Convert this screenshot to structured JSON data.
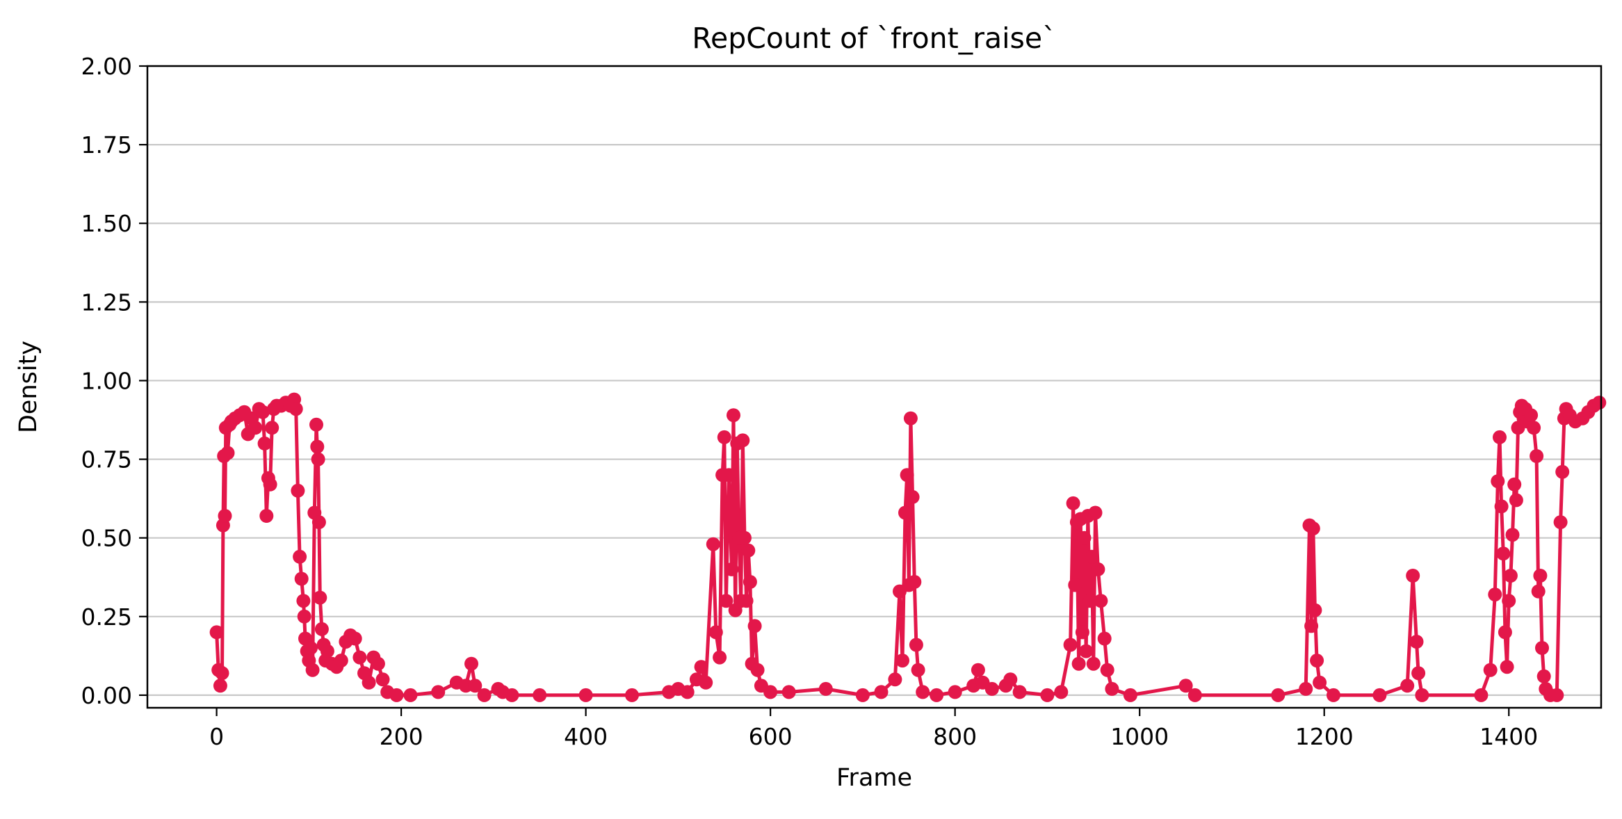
{
  "chart_data": {
    "type": "line",
    "title": "RepCount of `front_raise`",
    "xlabel": "Frame",
    "ylabel": "Density",
    "xlim": [
      -75,
      1500
    ],
    "ylim": [
      -0.04,
      2.0
    ],
    "xticks": [
      0,
      200,
      400,
      600,
      800,
      1000,
      1200,
      1400
    ],
    "xtick_labels": [
      "0",
      "200",
      "400",
      "600",
      "800",
      "1000",
      "1200",
      "1400"
    ],
    "yticks": [
      0.0,
      0.25,
      0.5,
      0.75,
      1.0,
      1.25,
      1.5,
      1.75,
      2.0
    ],
    "ytick_labels": [
      "0.00",
      "0.25",
      "0.50",
      "0.75",
      "1.00",
      "1.25",
      "1.50",
      "1.75",
      "2.00"
    ],
    "grid": "y",
    "legend": "none",
    "series": [
      {
        "color": "#e3174a",
        "marker": "circle",
        "points": [
          [
            0,
            0.2
          ],
          [
            2,
            0.08
          ],
          [
            4,
            0.03
          ],
          [
            6,
            0.07
          ],
          [
            7,
            0.54
          ],
          [
            8,
            0.76
          ],
          [
            9,
            0.57
          ],
          [
            10,
            0.85
          ],
          [
            12,
            0.77
          ],
          [
            14,
            0.86
          ],
          [
            16,
            0.87
          ],
          [
            20,
            0.88
          ],
          [
            25,
            0.89
          ],
          [
            30,
            0.9
          ],
          [
            34,
            0.83
          ],
          [
            38,
            0.88
          ],
          [
            42,
            0.85
          ],
          [
            46,
            0.91
          ],
          [
            50,
            0.9
          ],
          [
            52,
            0.8
          ],
          [
            54,
            0.57
          ],
          [
            56,
            0.69
          ],
          [
            58,
            0.67
          ],
          [
            60,
            0.85
          ],
          [
            62,
            0.91
          ],
          [
            65,
            0.92
          ],
          [
            70,
            0.92
          ],
          [
            75,
            0.93
          ],
          [
            80,
            0.92
          ],
          [
            84,
            0.94
          ],
          [
            86,
            0.91
          ],
          [
            88,
            0.65
          ],
          [
            90,
            0.44
          ],
          [
            92,
            0.37
          ],
          [
            94,
            0.3
          ],
          [
            95,
            0.25
          ],
          [
            96,
            0.18
          ],
          [
            98,
            0.14
          ],
          [
            100,
            0.11
          ],
          [
            102,
            0.15
          ],
          [
            104,
            0.08
          ],
          [
            106,
            0.58
          ],
          [
            108,
            0.86
          ],
          [
            109,
            0.79
          ],
          [
            110,
            0.75
          ],
          [
            111,
            0.55
          ],
          [
            112,
            0.31
          ],
          [
            114,
            0.21
          ],
          [
            116,
            0.16
          ],
          [
            118,
            0.11
          ],
          [
            120,
            0.14
          ],
          [
            125,
            0.1
          ],
          [
            130,
            0.09
          ],
          [
            135,
            0.11
          ],
          [
            140,
            0.17
          ],
          [
            145,
            0.19
          ],
          [
            150,
            0.18
          ],
          [
            155,
            0.12
          ],
          [
            160,
            0.07
          ],
          [
            165,
            0.04
          ],
          [
            170,
            0.12
          ],
          [
            175,
            0.1
          ],
          [
            180,
            0.05
          ],
          [
            185,
            0.01
          ],
          [
            195,
            0.0
          ],
          [
            210,
            0.0
          ],
          [
            240,
            0.01
          ],
          [
            260,
            0.04
          ],
          [
            270,
            0.03
          ],
          [
            276,
            0.1
          ],
          [
            280,
            0.03
          ],
          [
            290,
            0.0
          ],
          [
            305,
            0.02
          ],
          [
            310,
            0.01
          ],
          [
            320,
            0.0
          ],
          [
            350,
            0.0
          ],
          [
            400,
            0.0
          ],
          [
            450,
            0.0
          ],
          [
            490,
            0.01
          ],
          [
            500,
            0.02
          ],
          [
            510,
            0.01
          ],
          [
            520,
            0.05
          ],
          [
            525,
            0.09
          ],
          [
            530,
            0.04
          ],
          [
            538,
            0.48
          ],
          [
            541,
            0.2
          ],
          [
            545,
            0.12
          ],
          [
            548,
            0.7
          ],
          [
            550,
            0.82
          ],
          [
            552,
            0.3
          ],
          [
            555,
            0.7
          ],
          [
            558,
            0.4
          ],
          [
            560,
            0.89
          ],
          [
            562,
            0.27
          ],
          [
            564,
            0.8
          ],
          [
            566,
            0.5
          ],
          [
            568,
            0.3
          ],
          [
            570,
            0.81
          ],
          [
            572,
            0.5
          ],
          [
            574,
            0.3
          ],
          [
            576,
            0.46
          ],
          [
            578,
            0.36
          ],
          [
            580,
            0.1
          ],
          [
            583,
            0.22
          ],
          [
            586,
            0.08
          ],
          [
            590,
            0.03
          ],
          [
            600,
            0.01
          ],
          [
            620,
            0.01
          ],
          [
            660,
            0.02
          ],
          [
            700,
            0.0
          ],
          [
            720,
            0.01
          ],
          [
            735,
            0.05
          ],
          [
            740,
            0.33
          ],
          [
            743,
            0.11
          ],
          [
            746,
            0.58
          ],
          [
            748,
            0.7
          ],
          [
            750,
            0.35
          ],
          [
            752,
            0.88
          ],
          [
            754,
            0.63
          ],
          [
            756,
            0.36
          ],
          [
            758,
            0.16
          ],
          [
            760,
            0.08
          ],
          [
            765,
            0.01
          ],
          [
            780,
            0.0
          ],
          [
            800,
            0.01
          ],
          [
            820,
            0.03
          ],
          [
            825,
            0.08
          ],
          [
            830,
            0.04
          ],
          [
            840,
            0.02
          ],
          [
            855,
            0.03
          ],
          [
            860,
            0.05
          ],
          [
            870,
            0.01
          ],
          [
            900,
            0.0
          ],
          [
            915,
            0.01
          ],
          [
            925,
            0.16
          ],
          [
            928,
            0.61
          ],
          [
            930,
            0.35
          ],
          [
            932,
            0.55
          ],
          [
            934,
            0.1
          ],
          [
            936,
            0.56
          ],
          [
            938,
            0.2
          ],
          [
            940,
            0.5
          ],
          [
            942,
            0.14
          ],
          [
            944,
            0.57
          ],
          [
            946,
            0.3
          ],
          [
            948,
            0.44
          ],
          [
            950,
            0.1
          ],
          [
            952,
            0.58
          ],
          [
            955,
            0.4
          ],
          [
            958,
            0.3
          ],
          [
            962,
            0.18
          ],
          [
            965,
            0.08
          ],
          [
            970,
            0.02
          ],
          [
            990,
            0.0
          ],
          [
            1050,
            0.03
          ],
          [
            1060,
            0.0
          ],
          [
            1150,
            0.0
          ],
          [
            1180,
            0.02
          ],
          [
            1184,
            0.54
          ],
          [
            1186,
            0.22
          ],
          [
            1188,
            0.53
          ],
          [
            1190,
            0.27
          ],
          [
            1192,
            0.11
          ],
          [
            1195,
            0.04
          ],
          [
            1210,
            0.0
          ],
          [
            1260,
            0.0
          ],
          [
            1290,
            0.03
          ],
          [
            1296,
            0.38
          ],
          [
            1300,
            0.17
          ],
          [
            1302,
            0.07
          ],
          [
            1306,
            0.0
          ],
          [
            1370,
            0.0
          ],
          [
            1380,
            0.08
          ],
          [
            1385,
            0.32
          ],
          [
            1388,
            0.68
          ],
          [
            1390,
            0.82
          ],
          [
            1392,
            0.6
          ],
          [
            1394,
            0.45
          ],
          [
            1396,
            0.2
          ],
          [
            1398,
            0.09
          ],
          [
            1400,
            0.3
          ],
          [
            1402,
            0.38
          ],
          [
            1404,
            0.51
          ],
          [
            1406,
            0.67
          ],
          [
            1408,
            0.62
          ],
          [
            1410,
            0.85
          ],
          [
            1412,
            0.9
          ],
          [
            1414,
            0.92
          ],
          [
            1416,
            0.88
          ],
          [
            1418,
            0.91
          ],
          [
            1420,
            0.87
          ],
          [
            1424,
            0.89
          ],
          [
            1427,
            0.85
          ],
          [
            1430,
            0.76
          ],
          [
            1432,
            0.33
          ],
          [
            1434,
            0.38
          ],
          [
            1436,
            0.15
          ],
          [
            1438,
            0.06
          ],
          [
            1440,
            0.02
          ],
          [
            1445,
            0.0
          ],
          [
            1452,
            0.0
          ],
          [
            1456,
            0.55
          ],
          [
            1458,
            0.71
          ],
          [
            1460,
            0.88
          ],
          [
            1462,
            0.91
          ],
          [
            1466,
            0.89
          ],
          [
            1472,
            0.87
          ],
          [
            1480,
            0.88
          ],
          [
            1486,
            0.9
          ],
          [
            1492,
            0.92
          ],
          [
            1498,
            0.93
          ]
        ]
      }
    ]
  }
}
